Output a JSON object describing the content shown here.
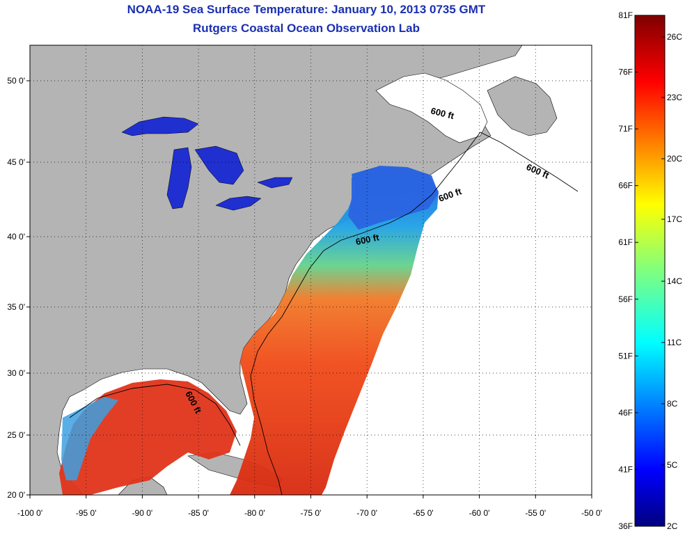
{
  "title": {
    "line1": "NOAA-19 Sea Surface Temperature:  January 10, 2013 0735 GMT",
    "line2": "Rutgers Coastal Ocean Observation Lab"
  },
  "axes": {
    "x_ticks": [
      "-100 0'",
      "-95 0'",
      "-90 0'",
      "-85 0'",
      "-80 0'",
      "-75 0'",
      "-70 0'",
      "-65 0'",
      "-60 0'",
      "-55 0'",
      "-50 0'"
    ],
    "y_ticks": [
      "50 0'",
      "45 0'",
      "40 0'",
      "35 0'",
      "30 0'",
      "25 0'",
      "20 0'"
    ]
  },
  "contour_label": "600 ft",
  "colorbar": {
    "fahrenheit": [
      "81F",
      "76F",
      "71F",
      "66F",
      "61F",
      "56F",
      "51F",
      "46F",
      "41F",
      "36F"
    ],
    "celsius": [
      "26C",
      "23C",
      "20C",
      "17C",
      "14C",
      "11C",
      "8C",
      "5C",
      "2C"
    ],
    "colormap": "jet"
  },
  "colors": {
    "title": "#1a2fb0",
    "land": "#b4b4b4",
    "lakes": "#1f2fd0",
    "grid": "#000000"
  }
}
